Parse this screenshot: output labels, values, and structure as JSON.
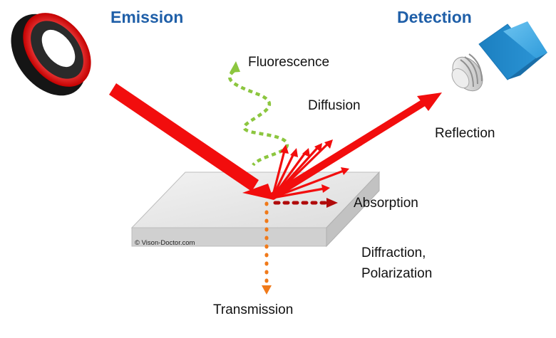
{
  "headings": {
    "emission": "Emission",
    "detection": "Detection"
  },
  "labels": {
    "fluorescence": "Fluorescence",
    "diffusion": "Diffusion",
    "reflection": "Reflection",
    "absorption": "Absorption",
    "diffraction": "Diffraction,",
    "polarization": "Polarization",
    "transmission": "Transmission"
  },
  "copyright": "© Vison-Doctor.com",
  "colors": {
    "heading": "#1F5FA8",
    "light_ray": "#F20D0D",
    "absorption": "#B00A0A",
    "transmission": "#F07A1A",
    "fluorescence": "#8CC63F",
    "camera": "#2E9BDB",
    "plate": "#E6E6E6"
  },
  "icons": {
    "light_source": "ring-light-icon",
    "detector": "camera-icon"
  }
}
